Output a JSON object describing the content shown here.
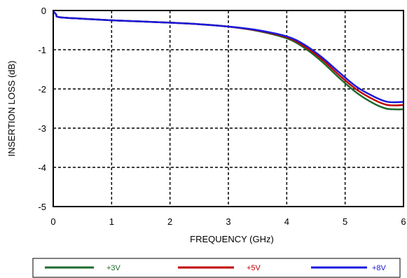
{
  "chart_data": {
    "type": "line",
    "title": "",
    "xlabel": "FREQUENCY (GHz)",
    "ylabel": "INSERTION LOSS (dB)",
    "xlim": [
      0,
      6
    ],
    "ylim": [
      -5,
      0
    ],
    "xticks": [
      "0",
      "1",
      "2",
      "3",
      "4",
      "5",
      "6"
    ],
    "yticks": [
      "0",
      "-1",
      "-2",
      "-3",
      "-4",
      "-5"
    ],
    "grid": "dashed",
    "legend_position": "bottom",
    "x": [
      0,
      0.05,
      0.1,
      0.5,
      1.0,
      1.5,
      2.0,
      2.5,
      3.0,
      3.5,
      4.0,
      4.3,
      4.6,
      4.9,
      5.2,
      5.5,
      5.7,
      5.85,
      6.0
    ],
    "series": [
      {
        "name": "+3V",
        "color": "#1e6b2e",
        "values": [
          -0.02,
          -0.1,
          -0.17,
          -0.21,
          -0.25,
          -0.28,
          -0.31,
          -0.35,
          -0.41,
          -0.52,
          -0.71,
          -0.95,
          -1.3,
          -1.72,
          -2.1,
          -2.38,
          -2.5,
          -2.52,
          -2.52
        ]
      },
      {
        "name": "+5V",
        "color": "#c00000",
        "values": [
          -0.02,
          -0.1,
          -0.17,
          -0.21,
          -0.25,
          -0.28,
          -0.31,
          -0.35,
          -0.41,
          -0.51,
          -0.68,
          -0.91,
          -1.24,
          -1.65,
          -2.02,
          -2.28,
          -2.4,
          -2.42,
          -2.41
        ]
      },
      {
        "name": "+8V",
        "color": "#1a1adc",
        "values": [
          -0.02,
          -0.1,
          -0.17,
          -0.21,
          -0.25,
          -0.28,
          -0.31,
          -0.35,
          -0.41,
          -0.5,
          -0.66,
          -0.87,
          -1.19,
          -1.58,
          -1.95,
          -2.2,
          -2.32,
          -2.34,
          -2.33
        ]
      }
    ]
  }
}
